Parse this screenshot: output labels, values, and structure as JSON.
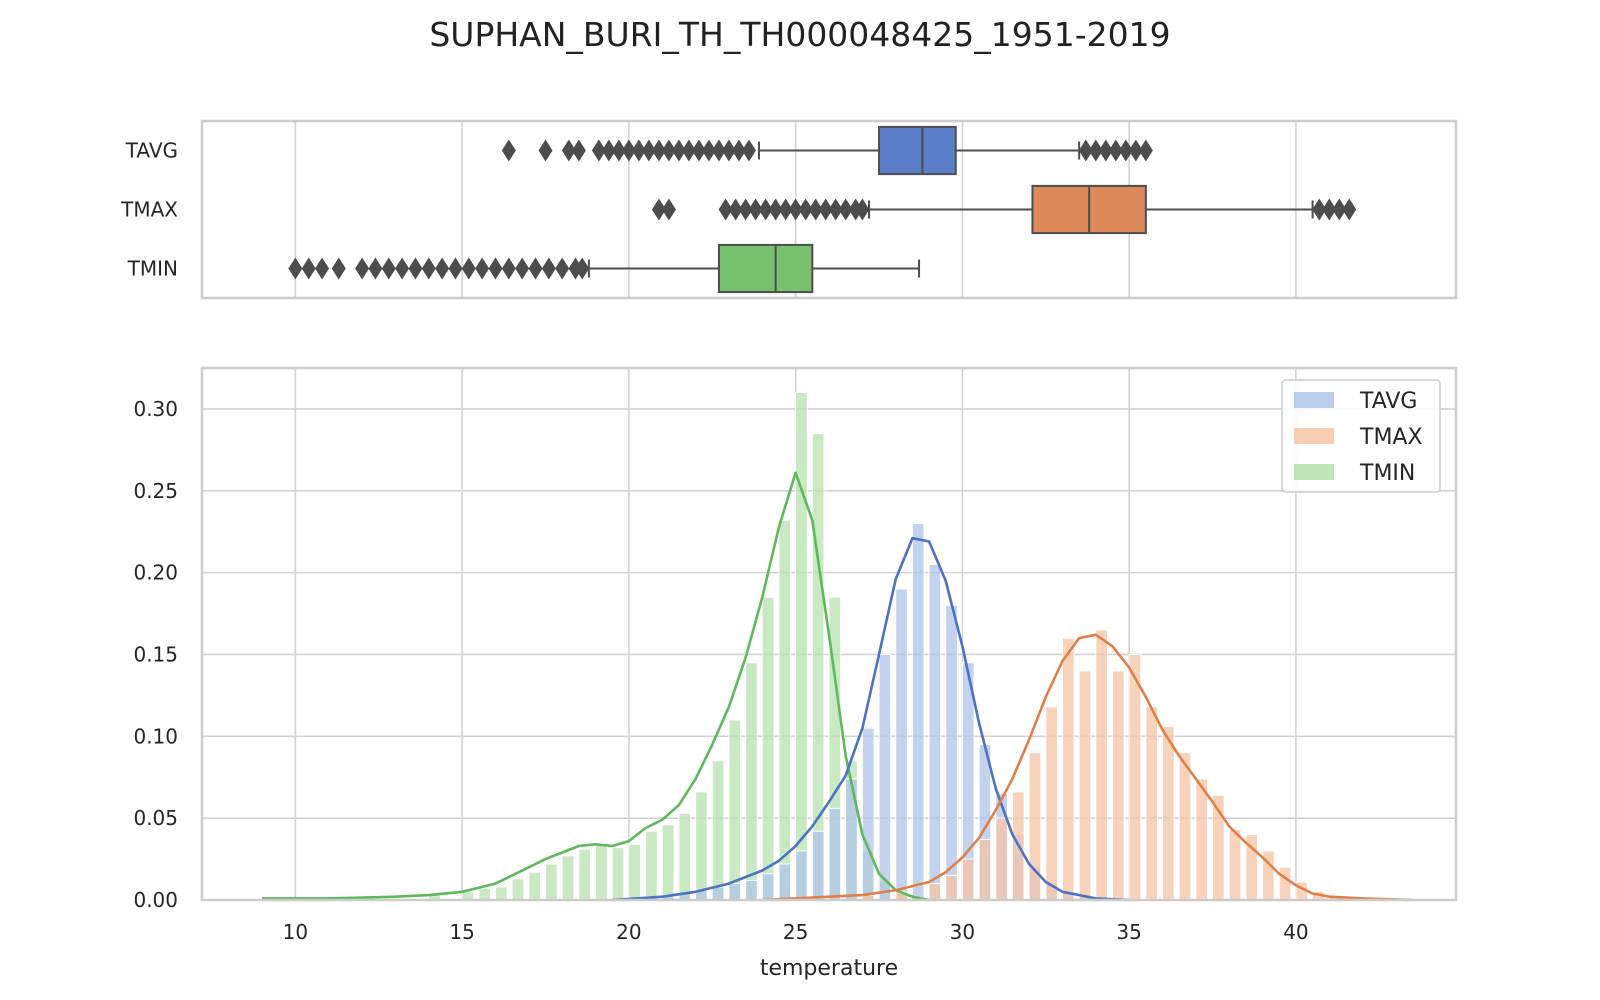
{
  "title": "SUPHAN_BURI_TH_TH000048425_1951-2019",
  "chart_data": [
    {
      "type": "box",
      "categories": [
        "TAVG",
        "TMAX",
        "TMIN"
      ],
      "series": [
        {
          "name": "TAVG",
          "color": "#5a7fc8",
          "q1": 27.5,
          "median": 28.8,
          "q3": 29.8,
          "whisker_low": 23.9,
          "whisker_high": 33.5,
          "outliers": [
            16.4,
            17.5,
            18.2,
            18.5,
            19.1,
            19.4,
            19.7,
            20.0,
            20.3,
            20.6,
            20.9,
            21.2,
            21.5,
            21.8,
            22.1,
            22.4,
            22.7,
            23.0,
            23.3,
            23.6,
            33.7,
            34.0,
            34.3,
            34.6,
            34.9,
            35.2,
            35.5
          ]
        },
        {
          "name": "TMAX",
          "color": "#de8b5c",
          "q1": 32.1,
          "median": 33.8,
          "q3": 35.5,
          "whisker_low": 27.2,
          "whisker_high": 40.5,
          "outliers": [
            20.9,
            21.2,
            22.9,
            23.2,
            23.5,
            23.8,
            24.1,
            24.4,
            24.7,
            25.0,
            25.3,
            25.6,
            25.9,
            26.2,
            26.5,
            26.8,
            27.0,
            40.7,
            41.0,
            41.3,
            41.6
          ]
        },
        {
          "name": "TMIN",
          "color": "#77c16e",
          "q1": 22.7,
          "median": 24.4,
          "q3": 25.5,
          "whisker_low": 18.8,
          "whisker_high": 28.7,
          "outliers": [
            10.0,
            10.4,
            10.8,
            11.3,
            12.0,
            12.4,
            12.8,
            13.2,
            13.6,
            14.0,
            14.4,
            14.8,
            15.2,
            15.6,
            16.0,
            16.4,
            16.8,
            17.2,
            17.6,
            18.0,
            18.4,
            18.6
          ]
        }
      ]
    },
    {
      "type": "histogram",
      "xlabel": "temperature",
      "ylabel": "",
      "xlim": [
        7.2,
        44.8
      ],
      "ylim": [
        0,
        0.325
      ],
      "xticks": [
        10,
        15,
        20,
        25,
        30,
        35,
        40
      ],
      "yticks": [
        0.0,
        0.05,
        0.1,
        0.15,
        0.2,
        0.25,
        0.3
      ],
      "bin_width": 0.35,
      "legend_position": "upper right",
      "series": [
        {
          "name": "TMIN",
          "bar_color": "#b5e2ad",
          "kde_color": "#5db95a",
          "bins": [
            [
              9.0,
              0.001
            ],
            [
              12.0,
              0.002
            ],
            [
              14.0,
              0.003
            ],
            [
              15.0,
              0.005
            ],
            [
              15.5,
              0.007
            ],
            [
              16.0,
              0.008
            ],
            [
              16.5,
              0.013
            ],
            [
              17.0,
              0.017
            ],
            [
              17.5,
              0.022
            ],
            [
              18.0,
              0.027
            ],
            [
              18.5,
              0.031
            ],
            [
              19.0,
              0.034
            ],
            [
              19.5,
              0.032
            ],
            [
              20.0,
              0.034
            ],
            [
              20.5,
              0.042
            ],
            [
              21.0,
              0.046
            ],
            [
              21.5,
              0.053
            ],
            [
              22.0,
              0.066
            ],
            [
              22.5,
              0.085
            ],
            [
              23.0,
              0.11
            ],
            [
              23.5,
              0.145
            ],
            [
              24.0,
              0.185
            ],
            [
              24.5,
              0.232
            ],
            [
              25.0,
              0.31
            ],
            [
              25.5,
              0.285
            ],
            [
              26.0,
              0.185
            ],
            [
              26.5,
              0.085
            ],
            [
              27.0,
              0.03
            ],
            [
              27.5,
              0.012
            ],
            [
              28.0,
              0.004
            ]
          ],
          "kde": [
            [
              9.0,
              0.001
            ],
            [
              11.0,
              0.001
            ],
            [
              13.0,
              0.002
            ],
            [
              14.0,
              0.003
            ],
            [
              15.0,
              0.005
            ],
            [
              16.0,
              0.01
            ],
            [
              17.0,
              0.02
            ],
            [
              17.5,
              0.025
            ],
            [
              18.0,
              0.029
            ],
            [
              18.5,
              0.033
            ],
            [
              19.0,
              0.034
            ],
            [
              19.5,
              0.033
            ],
            [
              20.0,
              0.036
            ],
            [
              20.5,
              0.044
            ],
            [
              21.0,
              0.049
            ],
            [
              21.5,
              0.058
            ],
            [
              22.0,
              0.074
            ],
            [
              22.5,
              0.095
            ],
            [
              23.0,
              0.118
            ],
            [
              23.5,
              0.148
            ],
            [
              24.0,
              0.185
            ],
            [
              24.5,
              0.228
            ],
            [
              25.0,
              0.261
            ],
            [
              25.5,
              0.232
            ],
            [
              26.0,
              0.162
            ],
            [
              26.5,
              0.088
            ],
            [
              27.0,
              0.04
            ],
            [
              27.5,
              0.016
            ],
            [
              28.0,
              0.006
            ],
            [
              28.5,
              0.002
            ],
            [
              29.0,
              0.0
            ]
          ]
        },
        {
          "name": "TAVG",
          "bar_color": "#afc4ea",
          "kde_color": "#4c72c4",
          "bins": [
            [
              20.5,
              0.002
            ],
            [
              21.0,
              0.003
            ],
            [
              21.5,
              0.004
            ],
            [
              22.0,
              0.006
            ],
            [
              22.5,
              0.008
            ],
            [
              23.0,
              0.01
            ],
            [
              23.5,
              0.012
            ],
            [
              24.0,
              0.016
            ],
            [
              24.5,
              0.022
            ],
            [
              25.0,
              0.03
            ],
            [
              25.5,
              0.042
            ],
            [
              26.0,
              0.056
            ],
            [
              26.5,
              0.074
            ],
            [
              27.0,
              0.105
            ],
            [
              27.5,
              0.15
            ],
            [
              28.0,
              0.19
            ],
            [
              28.5,
              0.23
            ],
            [
              29.0,
              0.205
            ],
            [
              29.5,
              0.18
            ],
            [
              30.0,
              0.145
            ],
            [
              30.5,
              0.095
            ],
            [
              31.0,
              0.065
            ],
            [
              31.5,
              0.04
            ],
            [
              32.0,
              0.02
            ],
            [
              32.5,
              0.01
            ],
            [
              33.0,
              0.005
            ],
            [
              33.5,
              0.002
            ]
          ],
          "kde": [
            [
              19.5,
              0.0
            ],
            [
              21.0,
              0.002
            ],
            [
              22.0,
              0.005
            ],
            [
              23.0,
              0.01
            ],
            [
              24.0,
              0.018
            ],
            [
              24.5,
              0.024
            ],
            [
              25.0,
              0.033
            ],
            [
              25.5,
              0.045
            ],
            [
              26.0,
              0.06
            ],
            [
              26.5,
              0.076
            ],
            [
              27.0,
              0.105
            ],
            [
              27.5,
              0.15
            ],
            [
              28.0,
              0.196
            ],
            [
              28.5,
              0.221
            ],
            [
              29.0,
              0.219
            ],
            [
              29.5,
              0.195
            ],
            [
              30.0,
              0.155
            ],
            [
              30.5,
              0.108
            ],
            [
              31.0,
              0.068
            ],
            [
              31.5,
              0.04
            ],
            [
              32.0,
              0.022
            ],
            [
              32.5,
              0.011
            ],
            [
              33.0,
              0.005
            ],
            [
              34.0,
              0.001
            ],
            [
              35.0,
              0.0
            ]
          ]
        },
        {
          "name": "TMAX",
          "bar_color": "#f6c4a6",
          "kde_color": "#e07f47",
          "bins": [
            [
              26.0,
              0.002
            ],
            [
              27.0,
              0.003
            ],
            [
              28.0,
              0.005
            ],
            [
              29.0,
              0.01
            ],
            [
              29.5,
              0.015
            ],
            [
              30.0,
              0.025
            ],
            [
              30.5,
              0.037
            ],
            [
              31.0,
              0.05
            ],
            [
              31.5,
              0.066
            ],
            [
              32.0,
              0.09
            ],
            [
              32.5,
              0.118
            ],
            [
              33.0,
              0.16
            ],
            [
              33.5,
              0.14
            ],
            [
              34.0,
              0.165
            ],
            [
              34.5,
              0.14
            ],
            [
              35.0,
              0.15
            ],
            [
              35.5,
              0.118
            ],
            [
              36.0,
              0.106
            ],
            [
              36.5,
              0.09
            ],
            [
              37.0,
              0.074
            ],
            [
              37.5,
              0.064
            ],
            [
              38.0,
              0.043
            ],
            [
              38.5,
              0.04
            ],
            [
              39.0,
              0.03
            ],
            [
              39.5,
              0.02
            ],
            [
              40.0,
              0.011
            ],
            [
              40.5,
              0.005
            ],
            [
              41.0,
              0.002
            ],
            [
              42.0,
              0.001
            ]
          ],
          "kde": [
            [
              24.0,
              0.0
            ],
            [
              26.0,
              0.002
            ],
            [
              27.0,
              0.003
            ],
            [
              28.0,
              0.006
            ],
            [
              29.0,
              0.011
            ],
            [
              29.5,
              0.017
            ],
            [
              30.0,
              0.026
            ],
            [
              30.5,
              0.038
            ],
            [
              31.0,
              0.055
            ],
            [
              31.5,
              0.074
            ],
            [
              32.0,
              0.098
            ],
            [
              32.5,
              0.124
            ],
            [
              33.0,
              0.146
            ],
            [
              33.5,
              0.16
            ],
            [
              34.0,
              0.162
            ],
            [
              34.5,
              0.155
            ],
            [
              35.0,
              0.142
            ],
            [
              35.5,
              0.124
            ],
            [
              36.0,
              0.104
            ],
            [
              36.5,
              0.088
            ],
            [
              37.0,
              0.074
            ],
            [
              37.5,
              0.06
            ],
            [
              38.0,
              0.045
            ],
            [
              38.5,
              0.035
            ],
            [
              39.0,
              0.026
            ],
            [
              39.5,
              0.016
            ],
            [
              40.0,
              0.009
            ],
            [
              40.5,
              0.004
            ],
            [
              41.0,
              0.002
            ],
            [
              42.0,
              0.001
            ],
            [
              43.5,
              0.0
            ]
          ]
        }
      ]
    }
  ]
}
